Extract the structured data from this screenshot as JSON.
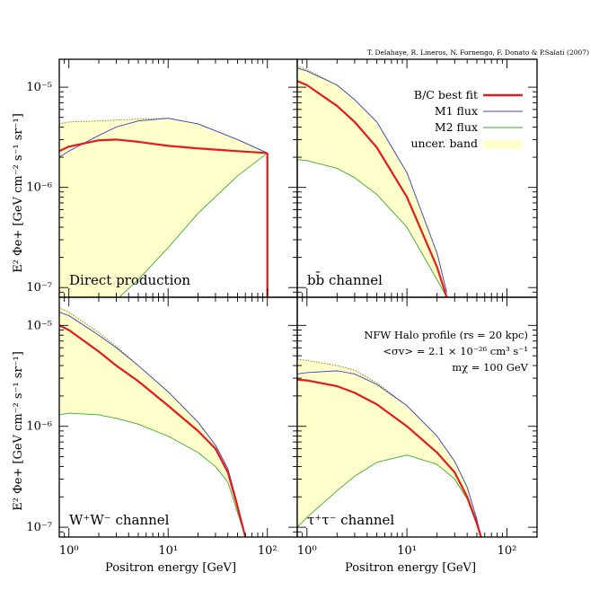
{
  "credit": "T. Delahaye, R. Lineros, N. Fornengo, F. Donato & P.Salati (2007)",
  "y_axis_label": "E² Φe+ [GeV cm⁻² s⁻¹ sr⁻¹]",
  "x_axis_label": "Positron energy [GeV]",
  "legend": {
    "best": "B/C best fit",
    "m1": "M1 flux",
    "m2": "M2 flux",
    "band": "uncer. band"
  },
  "info": {
    "line1": "NFW Halo profile (rs = 20 kpc)",
    "line2": "<σv> = 2.1 × 10⁻²⁶ cm³ s⁻¹",
    "line3": "mχ = 100 GeV"
  },
  "y_ticks": [
    "10⁻⁵",
    "10⁻⁶",
    "10⁻⁷"
  ],
  "x_ticks": [
    "10⁰",
    "10¹",
    "10²"
  ],
  "colors": {
    "best": "#e41a1c",
    "m1": "#3a45c8",
    "m2": "#39a92f",
    "band": "#ffffcc",
    "upper_dotted": "#8a7a00"
  },
  "chart_data": [
    {
      "type": "line",
      "panel_label": "Direct production",
      "x_scale": "log",
      "y_scale": "log",
      "xlim": [
        0.8,
        200
      ],
      "ylim": [
        8e-08,
        1.9e-05
      ],
      "x": [
        0.8,
        1,
        2,
        3,
        5,
        10,
        20,
        50,
        100
      ],
      "series": [
        {
          "name": "B/C best fit",
          "values": [
            2.3e-06,
            2.55e-06,
            2.95e-06,
            3e-06,
            2.85e-06,
            2.6e-06,
            2.45e-06,
            2.3e-06,
            2.2e-06
          ]
        },
        {
          "name": "M1 flux",
          "values": [
            2e-06,
            2.3e-06,
            3.3e-06,
            4e-06,
            4.6e-06,
            4.9e-06,
            4.3e-06,
            3e-06,
            2.2e-06
          ]
        },
        {
          "name": "M2 flux",
          "values": [
            null,
            null,
            null,
            7.5e-08,
            1.2e-07,
            2.5e-07,
            5.5e-07,
            1.3e-06,
            2.2e-06
          ]
        },
        {
          "name": "upper bound",
          "values": [
            4.3e-06,
            4.5e-06,
            4.6e-06,
            4.7e-06,
            4.8e-06,
            4.9e-06,
            4.3e-06,
            3e-06,
            2.2e-06
          ]
        }
      ],
      "cutoff_x": 100
    },
    {
      "type": "line",
      "panel_label": "bb̄ channel",
      "x_scale": "log",
      "y_scale": "log",
      "xlim": [
        0.8,
        200
      ],
      "ylim": [
        8e-08,
        1.9e-05
      ],
      "x": [
        0.8,
        1,
        2,
        3,
        5,
        10,
        20,
        25
      ],
      "series": [
        {
          "name": "B/C best fit",
          "values": [
            1.15e-05,
            1.05e-05,
            6.5e-06,
            4.5e-06,
            2.5e-06,
            8e-07,
            1.6e-07,
            8e-08
          ]
        },
        {
          "name": "M1 flux",
          "values": [
            1.55e-05,
            1.45e-05,
            1.05e-05,
            7.5e-06,
            4.5e-06,
            1.4e-06,
            2.2e-07,
            9e-08
          ]
        },
        {
          "name": "M2 flux",
          "values": [
            1.9e-06,
            1.85e-06,
            1.55e-06,
            1.25e-06,
            8.5e-07,
            4e-07,
            1.2e-07,
            8e-08
          ]
        },
        {
          "name": "upper bound",
          "values": [
            1.62e-05,
            1.5e-05,
            1.05e-05,
            7.5e-06,
            4.5e-06,
            1.4e-06,
            2.2e-07,
            9e-08
          ]
        }
      ]
    },
    {
      "type": "line",
      "panel_label": "W⁺W⁻ channel",
      "x_scale": "log",
      "y_scale": "log",
      "xlim": [
        0.8,
        200
      ],
      "ylim": [
        8e-08,
        1.9e-05
      ],
      "x": [
        0.8,
        1,
        2,
        3,
        5,
        10,
        20,
        30,
        40,
        50,
        60
      ],
      "series": [
        {
          "name": "B/C best fit",
          "values": [
            1e-05,
            9e-06,
            5.5e-06,
            4e-06,
            2.8e-06,
            1.6e-06,
            9e-07,
            6e-07,
            3.5e-07,
            1.6e-07,
            8e-08
          ]
        },
        {
          "name": "M1 flux",
          "values": [
            1.35e-05,
            1.25e-05,
            8e-06,
            6e-06,
            4e-06,
            2.2e-06,
            1.1e-06,
            6.5e-07,
            3.8e-07,
            1.7e-07,
            8e-08
          ]
        },
        {
          "name": "M2 flux",
          "values": [
            1.3e-06,
            1.35e-06,
            1.3e-06,
            1.2e-06,
            1.05e-06,
            8e-07,
            5.5e-07,
            4e-07,
            2.8e-07,
            1.4e-07,
            8e-08
          ]
        },
        {
          "name": "upper bound",
          "values": [
            1.5e-05,
            1.35e-05,
            8.5e-06,
            6.2e-06,
            4e-06,
            2.2e-06,
            1.1e-06,
            6.5e-07,
            3.8e-07,
            1.7e-07,
            8e-08
          ]
        }
      ]
    },
    {
      "type": "line",
      "panel_label": "τ⁺τ⁻ channel",
      "x_scale": "log",
      "y_scale": "log",
      "xlim": [
        0.8,
        200
      ],
      "ylim": [
        8e-08,
        1.9e-05
      ],
      "x": [
        0.8,
        1,
        2,
        3,
        5,
        10,
        20,
        30,
        40,
        50,
        55
      ],
      "series": [
        {
          "name": "B/C best fit",
          "values": [
            2.9e-06,
            2.85e-06,
            2.5e-06,
            2.15e-06,
            1.65e-06,
            1e-06,
            5.5e-07,
            3.5e-07,
            2e-07,
            1.1e-07,
            8e-08
          ]
        },
        {
          "name": "M1 flux",
          "values": [
            3.3e-06,
            3.4e-06,
            3.55e-06,
            3.3e-06,
            2.6e-06,
            1.6e-06,
            8e-07,
            4.5e-07,
            2.5e-07,
            1.2e-07,
            8e-08
          ]
        },
        {
          "name": "M2 flux",
          "values": [
            1e-07,
            1.25e-07,
            2.3e-07,
            3.2e-07,
            4.4e-07,
            5.2e-07,
            4.2e-07,
            3e-07,
            1.9e-07,
            1.05e-07,
            8e-08
          ]
        },
        {
          "name": "upper bound",
          "values": [
            4.6e-06,
            4.5e-06,
            4e-06,
            3.6e-06,
            2.7e-06,
            1.6e-06,
            8e-07,
            4.5e-07,
            2.5e-07,
            1.2e-07,
            8e-08
          ]
        }
      ]
    }
  ]
}
